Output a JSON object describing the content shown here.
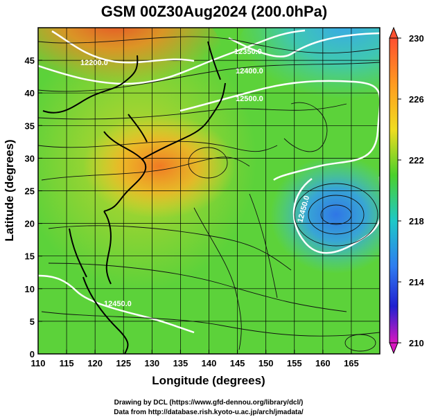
{
  "title": "GSM 00Z30Aug2024 (200.0hPa)",
  "xlabel": "Longitude (degrees)",
  "ylabel": "Latitude  (degrees)",
  "x_ticks": [
    "110",
    "115",
    "120",
    "125",
    "130",
    "135",
    "140",
    "145",
    "150",
    "155",
    "160",
    "165"
  ],
  "y_ticks": [
    "0",
    "5",
    "10",
    "15",
    "20",
    "25",
    "30",
    "35",
    "40",
    "45"
  ],
  "colorbar": {
    "ticks": [
      "230",
      "226",
      "222",
      "218",
      "214",
      "210"
    ],
    "stops": [
      "#ff5030",
      "#ff9a20",
      "#f0dc20",
      "#4ad02c",
      "#1ec8c8",
      "#2e7cf0",
      "#2020d0",
      "#d818c0"
    ]
  },
  "contour_labels": [
    "12200.0",
    "12350.0",
    "12400.0",
    "12500.0",
    "12450.0",
    "12450.0"
  ],
  "credits": [
    "Drawing by DCL (https://www.gfd-dennou.org/library/dcl/)",
    "Data from http://database.rish.kyoto-u.ac.jp/arch/jmadata/"
  ]
}
